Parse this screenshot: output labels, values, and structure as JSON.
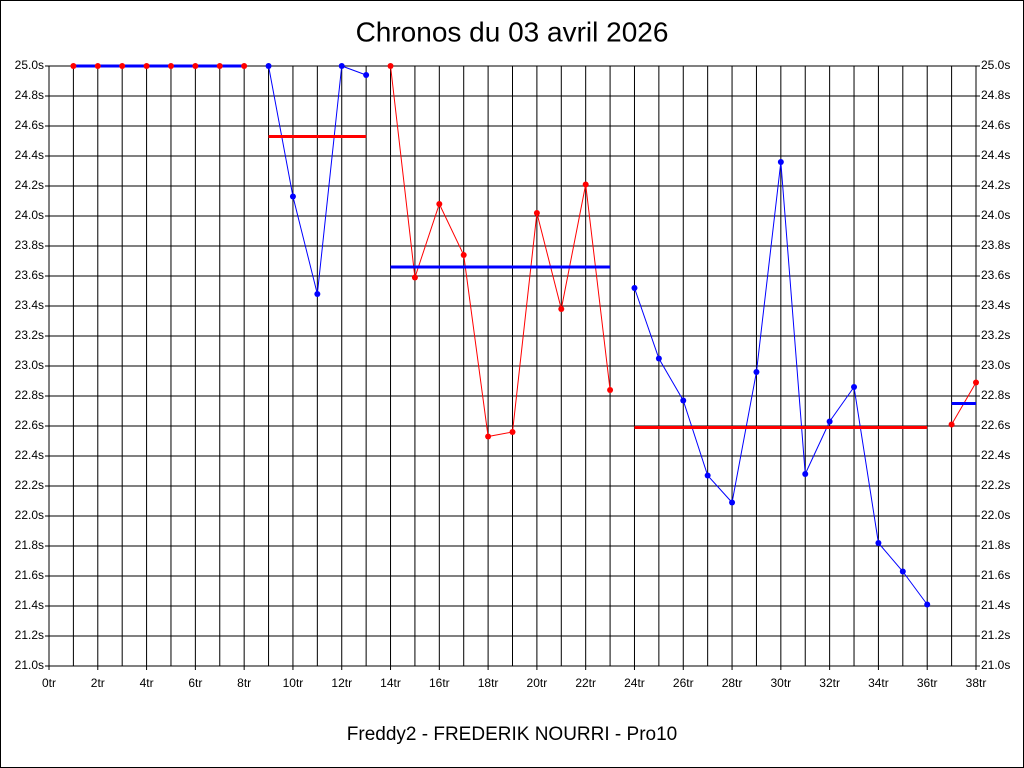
{
  "chart_data": {
    "type": "line",
    "title": "Chronos du 03 avril 2026",
    "footer": "Freddy2 - FREDERIK NOURRI - Pro10",
    "xlim": [
      0,
      38
    ],
    "xticks": [
      {
        "value": 0,
        "label": "0tr"
      },
      {
        "value": 2,
        "label": "2tr"
      },
      {
        "value": 4,
        "label": "4tr"
      },
      {
        "value": 6,
        "label": "6tr"
      },
      {
        "value": 8,
        "label": "8tr"
      },
      {
        "value": 10,
        "label": "10tr"
      },
      {
        "value": 12,
        "label": "12tr"
      },
      {
        "value": 14,
        "label": "14tr"
      },
      {
        "value": 16,
        "label": "16tr"
      },
      {
        "value": 18,
        "label": "18tr"
      },
      {
        "value": 20,
        "label": "20tr"
      },
      {
        "value": 22,
        "label": "22tr"
      },
      {
        "value": 24,
        "label": "24tr"
      },
      {
        "value": 26,
        "label": "26tr"
      },
      {
        "value": 28,
        "label": "28tr"
      },
      {
        "value": 30,
        "label": "30tr"
      },
      {
        "value": 32,
        "label": "32tr"
      },
      {
        "value": 34,
        "label": "34tr"
      },
      {
        "value": 36,
        "label": "36tr"
      },
      {
        "value": 38,
        "label": "38tr"
      }
    ],
    "ylim": [
      21.0,
      25.0
    ],
    "yticks": [
      {
        "value": 21.0,
        "label": "21.0s"
      },
      {
        "value": 21.2,
        "label": "21.2s"
      },
      {
        "value": 21.4,
        "label": "21.4s"
      },
      {
        "value": 21.6,
        "label": "21.6s"
      },
      {
        "value": 21.8,
        "label": "21.8s"
      },
      {
        "value": 22.0,
        "label": "22.0s"
      },
      {
        "value": 22.2,
        "label": "22.2s"
      },
      {
        "value": 22.4,
        "label": "22.4s"
      },
      {
        "value": 22.6,
        "label": "22.6s"
      },
      {
        "value": 22.8,
        "label": "22.8s"
      },
      {
        "value": 23.0,
        "label": "23.0s"
      },
      {
        "value": 23.2,
        "label": "23.2s"
      },
      {
        "value": 23.4,
        "label": "23.4s"
      },
      {
        "value": 23.6,
        "label": "23.6s"
      },
      {
        "value": 23.8,
        "label": "23.8s"
      },
      {
        "value": 24.0,
        "label": "24.0s"
      },
      {
        "value": 24.2,
        "label": "24.2s"
      },
      {
        "value": 24.4,
        "label": "24.4s"
      },
      {
        "value": 24.6,
        "label": "24.6s"
      },
      {
        "value": 24.8,
        "label": "24.8s"
      },
      {
        "value": 25.0,
        "label": "25.0s"
      }
    ],
    "grid": true,
    "series": [
      {
        "color": "#ff0000",
        "x": [
          1,
          2,
          3,
          4,
          5,
          6,
          7,
          8
        ],
        "values": [
          25.0,
          25.0,
          25.0,
          25.0,
          25.0,
          25.0,
          25.0,
          25.0
        ]
      },
      {
        "color": "#0000ff",
        "x": [
          9,
          10,
          11,
          12,
          13
        ],
        "values": [
          25.0,
          24.13,
          23.48,
          25.0,
          24.94
        ]
      },
      {
        "color": "#ff0000",
        "x": [
          14,
          15,
          16,
          17,
          18,
          19,
          20,
          21,
          22,
          23
        ],
        "values": [
          25.0,
          23.59,
          24.08,
          23.74,
          22.53,
          22.56,
          24.02,
          23.38,
          24.21,
          22.84
        ]
      },
      {
        "color": "#0000ff",
        "x": [
          24,
          25,
          26,
          27,
          28,
          29,
          30,
          31,
          32,
          33,
          34,
          35,
          36
        ],
        "values": [
          23.52,
          23.05,
          22.77,
          22.27,
          22.09,
          22.96,
          24.36,
          22.28,
          22.63,
          22.86,
          21.82,
          21.63,
          21.41
        ]
      },
      {
        "color": "#ff0000",
        "x": [
          37,
          38
        ],
        "values": [
          22.61,
          22.89
        ]
      }
    ],
    "averages": [
      {
        "color": "#0000ff",
        "x": [
          1,
          8
        ],
        "value": 25.0
      },
      {
        "color": "#ff0000",
        "x": [
          9,
          13
        ],
        "value": 24.53
      },
      {
        "color": "#0000ff",
        "x": [
          14,
          23
        ],
        "value": 23.66
      },
      {
        "color": "#ff0000",
        "x": [
          24,
          36
        ],
        "value": 22.59
      },
      {
        "color": "#0000ff",
        "x": [
          37,
          38
        ],
        "value": 22.75
      }
    ]
  }
}
